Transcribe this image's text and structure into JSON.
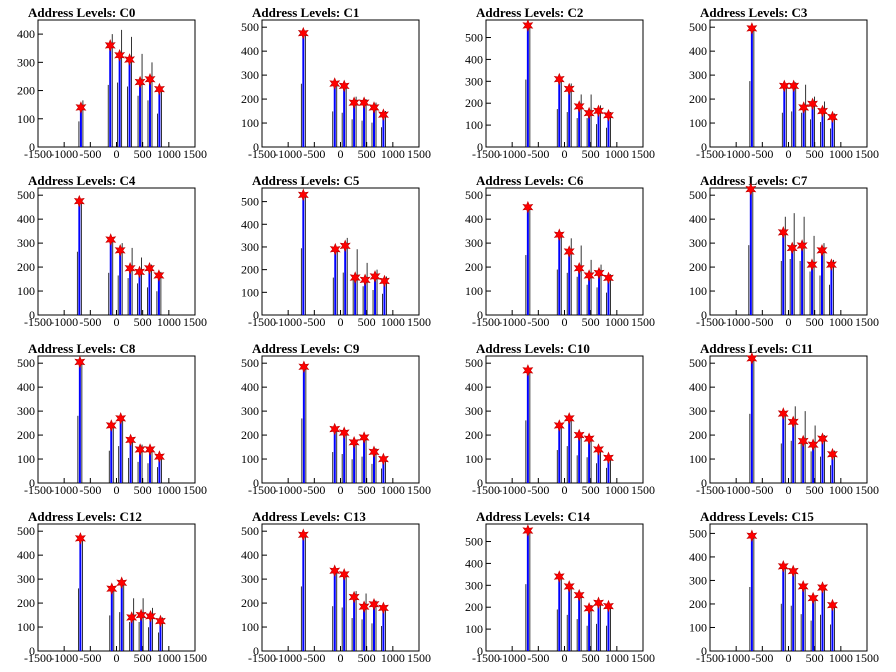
{
  "figure": {
    "shared_xlim": [
      -1500,
      1500
    ],
    "x_tick_labels": [
      "-1500",
      "-1000",
      "-500",
      "0",
      "500",
      "1000",
      "1500"
    ],
    "colors": {
      "line": "#0000ff",
      "spike": "#000000",
      "marker": "#ff0000",
      "axis": "#000000"
    },
    "marker_icon": "red-star-marker"
  },
  "chart_data": [
    {
      "type": "bar",
      "title": "Address Levels: C0",
      "xlim": [
        -1500,
        1500
      ],
      "ylim": [
        0,
        450
      ],
      "y_tick_labels": [
        "0",
        "100",
        "200",
        "300",
        "400"
      ],
      "peaks": [
        {
          "x": -680,
          "y": 140,
          "height": 165
        },
        {
          "x": -120,
          "y": 360,
          "height": 400
        },
        {
          "x": 60,
          "y": 325,
          "height": 415
        },
        {
          "x": 250,
          "y": 310,
          "height": 390
        },
        {
          "x": 450,
          "y": 230,
          "height": 330
        },
        {
          "x": 640,
          "y": 240,
          "height": 300
        },
        {
          "x": 820,
          "y": 205,
          "height": 215
        }
      ]
    },
    {
      "type": "bar",
      "title": "Address Levels: C1",
      "xlim": [
        -1500,
        1500
      ],
      "ylim": [
        0,
        530
      ],
      "y_tick_labels": [
        "0",
        "100",
        "200",
        "300",
        "400",
        "500"
      ],
      "peaks": [
        {
          "x": -710,
          "y": 475,
          "height": 480
        },
        {
          "x": -110,
          "y": 265,
          "height": 270
        },
        {
          "x": 70,
          "y": 255,
          "height": 260
        },
        {
          "x": 260,
          "y": 185,
          "height": 210
        },
        {
          "x": 450,
          "y": 185,
          "height": 200
        },
        {
          "x": 640,
          "y": 165,
          "height": 185
        },
        {
          "x": 820,
          "y": 135,
          "height": 150
        }
      ]
    },
    {
      "type": "bar",
      "title": "Address Levels: C2",
      "xlim": [
        -1500,
        1500
      ],
      "ylim": [
        0,
        580
      ],
      "y_tick_labels": [
        "0",
        "100",
        "200",
        "300",
        "400",
        "500"
      ],
      "peaks": [
        {
          "x": -700,
          "y": 555,
          "height": 560
        },
        {
          "x": -100,
          "y": 310,
          "height": 315
        },
        {
          "x": 90,
          "y": 265,
          "height": 290
        },
        {
          "x": 280,
          "y": 185,
          "height": 240
        },
        {
          "x": 470,
          "y": 155,
          "height": 240
        },
        {
          "x": 650,
          "y": 165,
          "height": 190
        },
        {
          "x": 840,
          "y": 145,
          "height": 160
        }
      ]
    },
    {
      "type": "bar",
      "title": "Address Levels: C3",
      "xlim": [
        -1500,
        1500
      ],
      "ylim": [
        0,
        530
      ],
      "y_tick_labels": [
        "0",
        "100",
        "200",
        "300",
        "400",
        "500"
      ],
      "peaks": [
        {
          "x": -700,
          "y": 495,
          "height": 500
        },
        {
          "x": -80,
          "y": 255,
          "height": 260
        },
        {
          "x": 100,
          "y": 255,
          "height": 270
        },
        {
          "x": 290,
          "y": 165,
          "height": 260
        },
        {
          "x": 460,
          "y": 180,
          "height": 210
        },
        {
          "x": 650,
          "y": 150,
          "height": 190
        },
        {
          "x": 840,
          "y": 125,
          "height": 140
        }
      ]
    },
    {
      "type": "bar",
      "title": "Address Levels: C4",
      "xlim": [
        -1500,
        1500
      ],
      "ylim": [
        0,
        530
      ],
      "y_tick_labels": [
        "0",
        "100",
        "200",
        "300",
        "400",
        "500"
      ],
      "peaks": [
        {
          "x": -710,
          "y": 475,
          "height": 480
        },
        {
          "x": -110,
          "y": 315,
          "height": 320
        },
        {
          "x": 70,
          "y": 270,
          "height": 300
        },
        {
          "x": 260,
          "y": 195,
          "height": 280
        },
        {
          "x": 440,
          "y": 180,
          "height": 240
        },
        {
          "x": 630,
          "y": 195,
          "height": 210
        },
        {
          "x": 810,
          "y": 165,
          "height": 180
        }
      ]
    },
    {
      "type": "bar",
      "title": "Address Levels: C5",
      "xlim": [
        -1500,
        1500
      ],
      "ylim": [
        0,
        560
      ],
      "y_tick_labels": [
        "0",
        "100",
        "200",
        "300",
        "400",
        "500"
      ],
      "peaks": [
        {
          "x": -710,
          "y": 530,
          "height": 535
        },
        {
          "x": -100,
          "y": 290,
          "height": 300
        },
        {
          "x": 90,
          "y": 305,
          "height": 340
        },
        {
          "x": 280,
          "y": 165,
          "height": 290
        },
        {
          "x": 470,
          "y": 155,
          "height": 230
        },
        {
          "x": 660,
          "y": 170,
          "height": 200
        },
        {
          "x": 840,
          "y": 150,
          "height": 170
        }
      ]
    },
    {
      "type": "bar",
      "title": "Address Levels: C6",
      "xlim": [
        -1500,
        1500
      ],
      "ylim": [
        0,
        530
      ],
      "y_tick_labels": [
        "0",
        "100",
        "200",
        "300",
        "400",
        "500"
      ],
      "peaks": [
        {
          "x": -700,
          "y": 450,
          "height": 455
        },
        {
          "x": -100,
          "y": 335,
          "height": 345
        },
        {
          "x": 90,
          "y": 265,
          "height": 320
        },
        {
          "x": 280,
          "y": 195,
          "height": 290
        },
        {
          "x": 470,
          "y": 165,
          "height": 230
        },
        {
          "x": 660,
          "y": 175,
          "height": 210
        },
        {
          "x": 840,
          "y": 155,
          "height": 170
        }
      ]
    },
    {
      "type": "bar",
      "title": "Address Levels: C7",
      "xlim": [
        -1500,
        1500
      ],
      "ylim": [
        0,
        530
      ],
      "y_tick_labels": [
        "0",
        "100",
        "200",
        "300",
        "400",
        "500"
      ],
      "peaks": [
        {
          "x": -720,
          "y": 525,
          "height": 530
        },
        {
          "x": -100,
          "y": 345,
          "height": 410
        },
        {
          "x": 70,
          "y": 280,
          "height": 425
        },
        {
          "x": 260,
          "y": 290,
          "height": 410
        },
        {
          "x": 450,
          "y": 210,
          "height": 330
        },
        {
          "x": 640,
          "y": 270,
          "height": 300
        },
        {
          "x": 820,
          "y": 210,
          "height": 230
        }
      ]
    },
    {
      "type": "bar",
      "title": "Address Levels: C8",
      "xlim": [
        -1500,
        1500
      ],
      "ylim": [
        0,
        530
      ],
      "y_tick_labels": [
        "0",
        "100",
        "200",
        "300",
        "400",
        "500"
      ],
      "peaks": [
        {
          "x": -700,
          "y": 505,
          "height": 510
        },
        {
          "x": -100,
          "y": 240,
          "height": 245
        },
        {
          "x": 80,
          "y": 270,
          "height": 280
        },
        {
          "x": 270,
          "y": 180,
          "height": 190
        },
        {
          "x": 450,
          "y": 140,
          "height": 160
        },
        {
          "x": 640,
          "y": 140,
          "height": 150
        },
        {
          "x": 820,
          "y": 110,
          "height": 120
        }
      ]
    },
    {
      "type": "bar",
      "title": "Address Levels: C9",
      "xlim": [
        -1500,
        1500
      ],
      "ylim": [
        0,
        530
      ],
      "y_tick_labels": [
        "0",
        "100",
        "200",
        "300",
        "400",
        "500"
      ],
      "peaks": [
        {
          "x": -700,
          "y": 485,
          "height": 490
        },
        {
          "x": -110,
          "y": 225,
          "height": 235
        },
        {
          "x": 70,
          "y": 210,
          "height": 220
        },
        {
          "x": 260,
          "y": 170,
          "height": 180
        },
        {
          "x": 450,
          "y": 190,
          "height": 200
        },
        {
          "x": 640,
          "y": 130,
          "height": 145
        },
        {
          "x": 820,
          "y": 100,
          "height": 110
        }
      ]
    },
    {
      "type": "bar",
      "title": "Address Levels: C10",
      "xlim": [
        -1500,
        1500
      ],
      "ylim": [
        0,
        530
      ],
      "y_tick_labels": [
        "0",
        "100",
        "200",
        "300",
        "400",
        "500"
      ],
      "peaks": [
        {
          "x": -700,
          "y": 470,
          "height": 475
        },
        {
          "x": -100,
          "y": 240,
          "height": 250
        },
        {
          "x": 90,
          "y": 270,
          "height": 280
        },
        {
          "x": 280,
          "y": 200,
          "height": 210
        },
        {
          "x": 470,
          "y": 185,
          "height": 195
        },
        {
          "x": 650,
          "y": 140,
          "height": 150
        },
        {
          "x": 840,
          "y": 105,
          "height": 115
        }
      ]
    },
    {
      "type": "bar",
      "title": "Address Levels: C11",
      "xlim": [
        -1500,
        1500
      ],
      "ylim": [
        0,
        530
      ],
      "y_tick_labels": [
        "0",
        "100",
        "200",
        "300",
        "400",
        "500"
      ],
      "peaks": [
        {
          "x": -700,
          "y": 520,
          "height": 525
        },
        {
          "x": -100,
          "y": 290,
          "height": 300
        },
        {
          "x": 90,
          "y": 255,
          "height": 320
        },
        {
          "x": 280,
          "y": 175,
          "height": 300
        },
        {
          "x": 470,
          "y": 160,
          "height": 240
        },
        {
          "x": 650,
          "y": 185,
          "height": 200
        },
        {
          "x": 840,
          "y": 120,
          "height": 135
        }
      ]
    },
    {
      "type": "bar",
      "title": "Address Levels: C12",
      "xlim": [
        -1500,
        1500
      ],
      "ylim": [
        0,
        530
      ],
      "y_tick_labels": [
        "0",
        "100",
        "200",
        "300",
        "400",
        "500"
      ],
      "peaks": [
        {
          "x": -690,
          "y": 470,
          "height": 475
        },
        {
          "x": -90,
          "y": 260,
          "height": 270
        },
        {
          "x": 100,
          "y": 285,
          "height": 295
        },
        {
          "x": 290,
          "y": 140,
          "height": 220
        },
        {
          "x": 470,
          "y": 150,
          "height": 220
        },
        {
          "x": 650,
          "y": 145,
          "height": 180
        },
        {
          "x": 840,
          "y": 125,
          "height": 140
        }
      ]
    },
    {
      "type": "bar",
      "title": "Address Levels: C13",
      "xlim": [
        -1500,
        1500
      ],
      "ylim": [
        0,
        530
      ],
      "y_tick_labels": [
        "0",
        "100",
        "200",
        "300",
        "400",
        "500"
      ],
      "peaks": [
        {
          "x": -710,
          "y": 485,
          "height": 490
        },
        {
          "x": -110,
          "y": 335,
          "height": 340
        },
        {
          "x": 70,
          "y": 320,
          "height": 330
        },
        {
          "x": 260,
          "y": 225,
          "height": 250
        },
        {
          "x": 450,
          "y": 185,
          "height": 240
        },
        {
          "x": 640,
          "y": 195,
          "height": 210
        },
        {
          "x": 820,
          "y": 180,
          "height": 190
        }
      ]
    },
    {
      "type": "bar",
      "title": "Address Levels: C14",
      "xlim": [
        -1500,
        1500
      ],
      "ylim": [
        0,
        580
      ],
      "y_tick_labels": [
        "0",
        "100",
        "200",
        "300",
        "400",
        "500"
      ],
      "peaks": [
        {
          "x": -700,
          "y": 550,
          "height": 555
        },
        {
          "x": -100,
          "y": 340,
          "height": 345
        },
        {
          "x": 90,
          "y": 295,
          "height": 300
        },
        {
          "x": 280,
          "y": 255,
          "height": 265
        },
        {
          "x": 470,
          "y": 195,
          "height": 210
        },
        {
          "x": 650,
          "y": 220,
          "height": 225
        },
        {
          "x": 840,
          "y": 205,
          "height": 210
        }
      ]
    },
    {
      "type": "bar",
      "title": "Address Levels: C15",
      "xlim": [
        -1500,
        1500
      ],
      "ylim": [
        0,
        540
      ],
      "y_tick_labels": [
        "0",
        "100",
        "200",
        "300",
        "400",
        "500"
      ],
      "peaks": [
        {
          "x": -700,
          "y": 490,
          "height": 495
        },
        {
          "x": -100,
          "y": 360,
          "height": 365
        },
        {
          "x": 90,
          "y": 340,
          "height": 350
        },
        {
          "x": 280,
          "y": 275,
          "height": 285
        },
        {
          "x": 470,
          "y": 225,
          "height": 235
        },
        {
          "x": 650,
          "y": 270,
          "height": 280
        },
        {
          "x": 840,
          "y": 195,
          "height": 205
        }
      ]
    }
  ]
}
